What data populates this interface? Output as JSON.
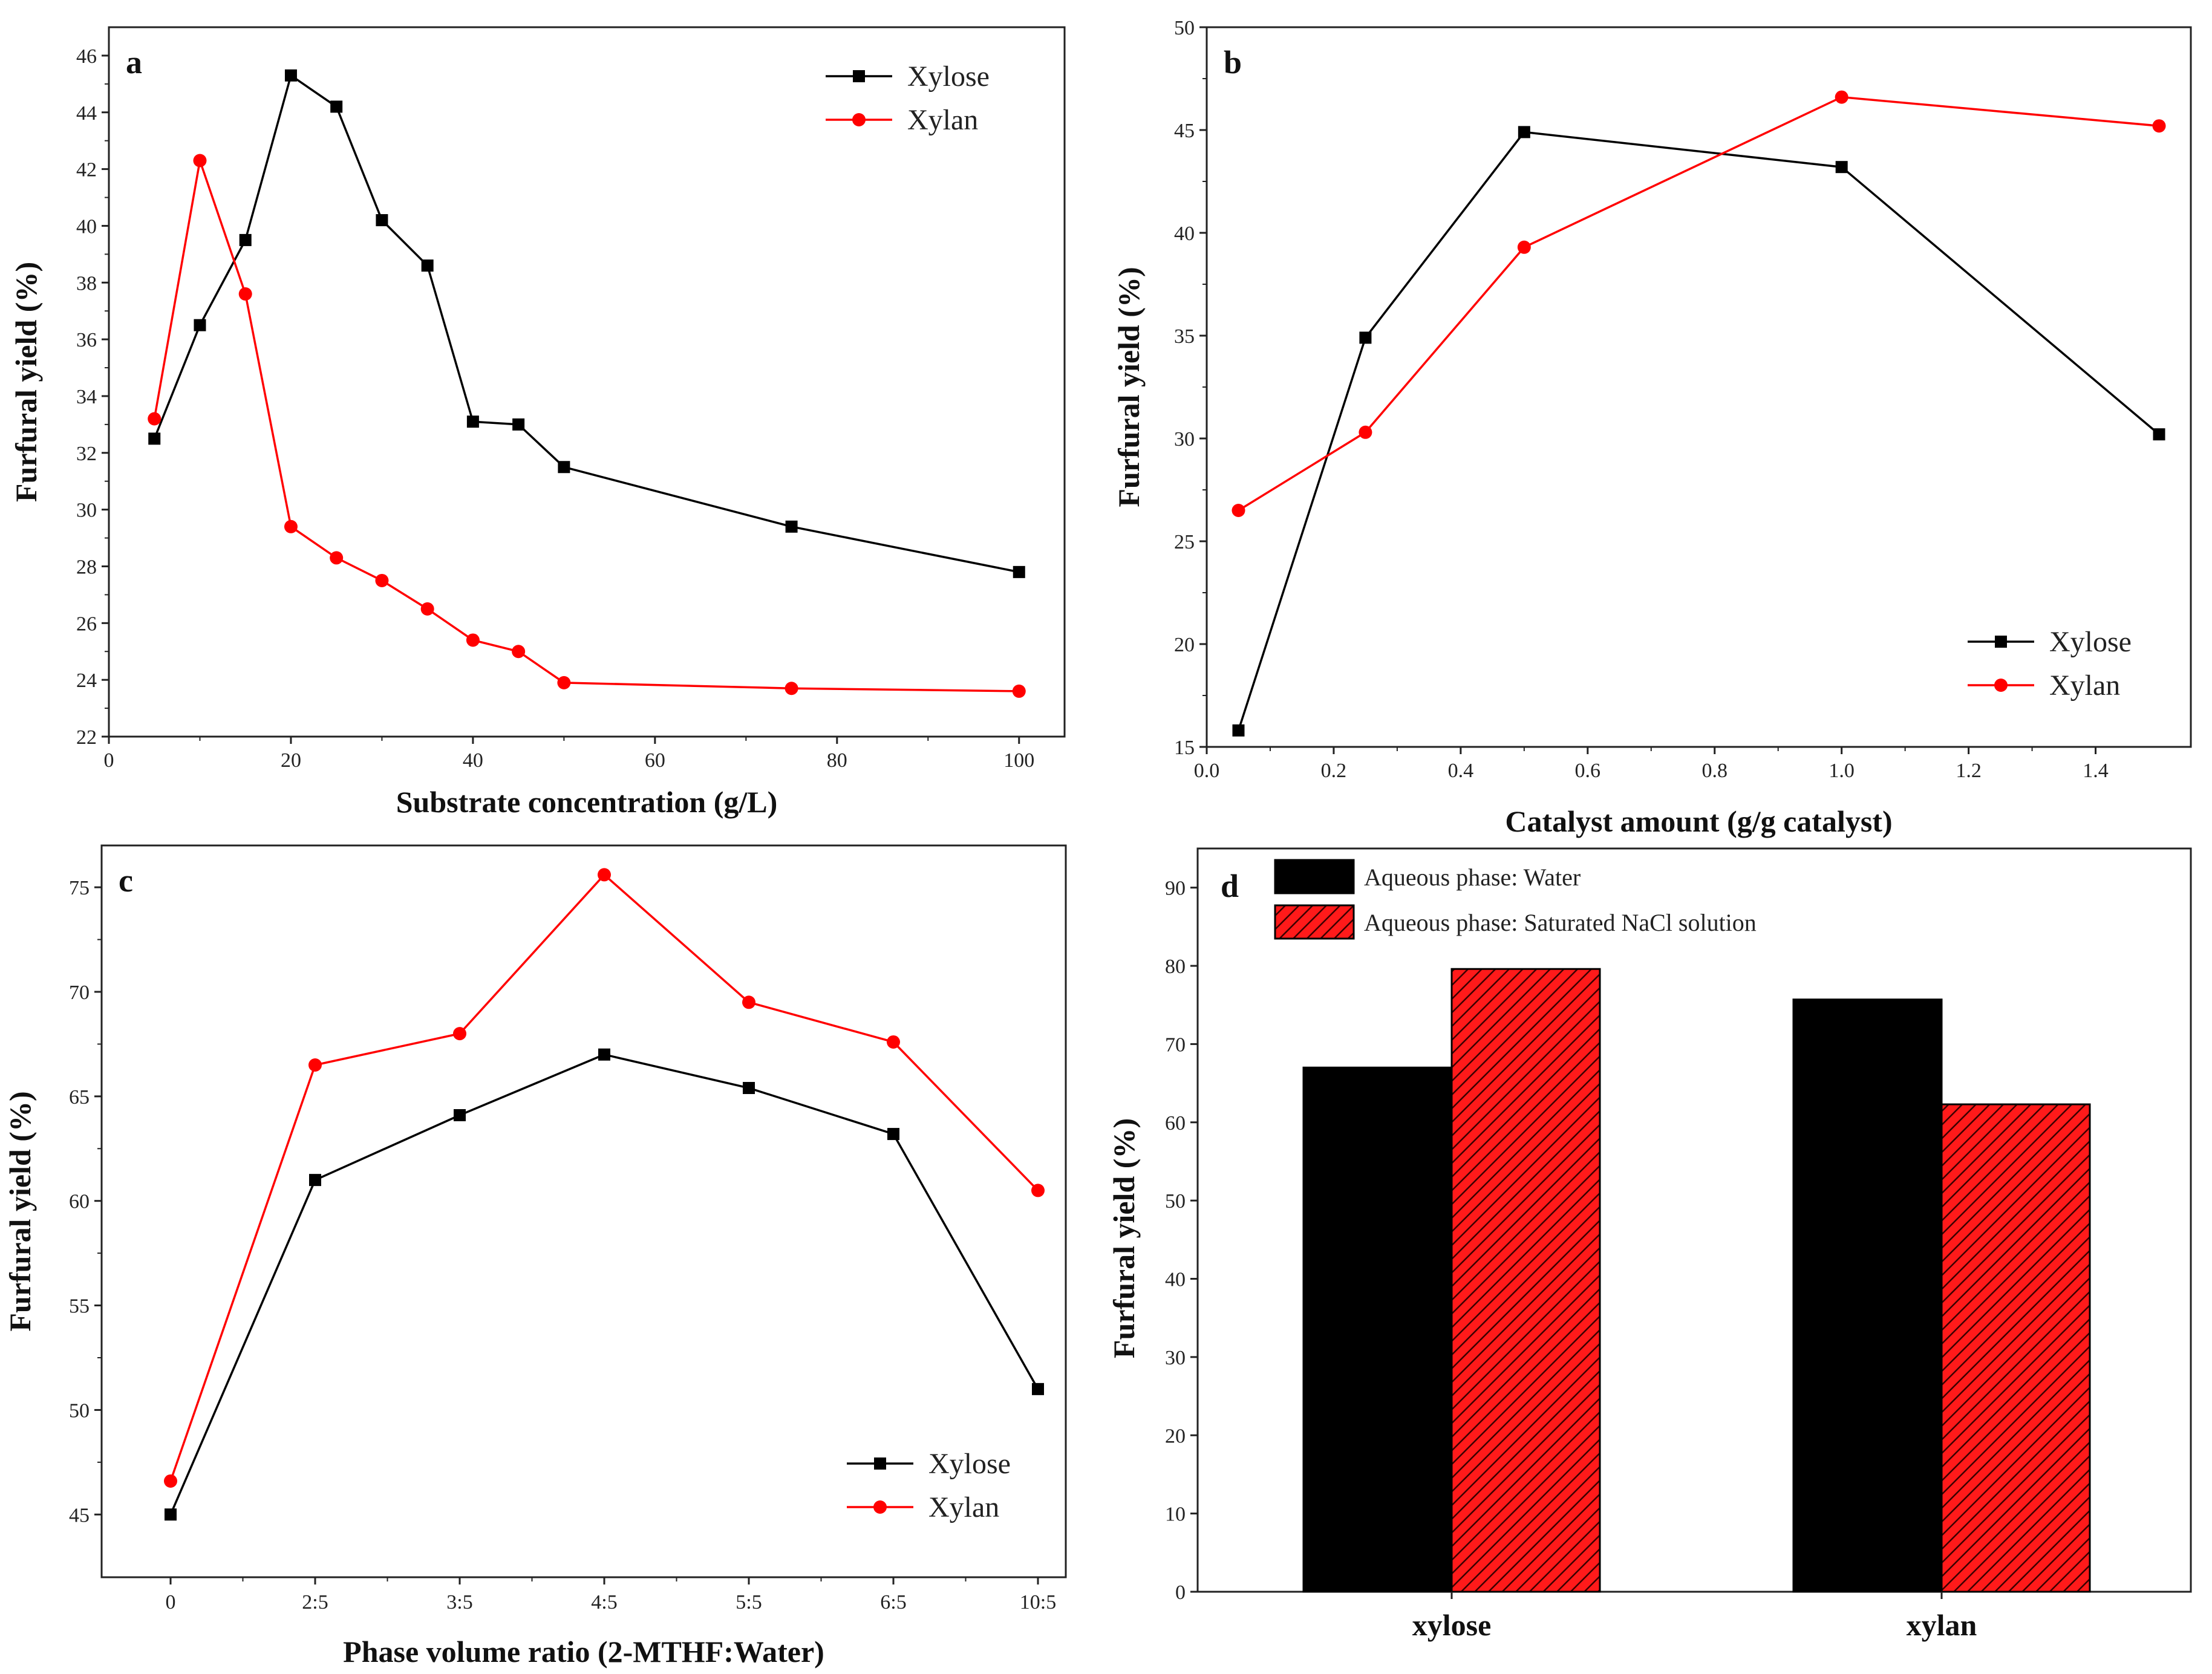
{
  "chart_data": [
    {
      "panel": "a",
      "type": "line",
      "xlabel": "Substrate concentration (g/L)",
      "ylabel": "Furfural yield (%)",
      "xlim": [
        0,
        105
      ],
      "ylim": [
        22,
        47
      ],
      "xticks": [
        0,
        20,
        40,
        60,
        80,
        100
      ],
      "yticks": [
        22,
        24,
        26,
        28,
        30,
        32,
        34,
        36,
        38,
        40,
        42,
        44,
        46
      ],
      "legend": "top-right",
      "series": [
        {
          "name": "Xylose",
          "color": "#000000",
          "marker": "square",
          "x": [
            5,
            10,
            15,
            20,
            25,
            30,
            35,
            40,
            45,
            50,
            75,
            100
          ],
          "y": [
            32.5,
            36.5,
            39.5,
            45.3,
            44.2,
            40.2,
            38.6,
            33.1,
            33.0,
            31.5,
            29.4,
            27.8
          ]
        },
        {
          "name": "Xylan",
          "color": "#ff0000",
          "marker": "circle",
          "x": [
            5,
            10,
            15,
            20,
            25,
            30,
            35,
            40,
            45,
            50,
            75,
            100
          ],
          "y": [
            33.2,
            42.3,
            37.6,
            29.4,
            28.3,
            27.5,
            26.5,
            25.4,
            25.0,
            23.9,
            23.7,
            23.6
          ]
        }
      ]
    },
    {
      "panel": "b",
      "type": "line",
      "xlabel": "Catalyst amount (g/g catalyst)",
      "ylabel": "Furfural yield (%)",
      "xlim": [
        0.0,
        1.55
      ],
      "ylim": [
        15,
        50
      ],
      "xticks": [
        "0.0",
        "0.2",
        "0.4",
        "0.6",
        "0.8",
        "1.0",
        "1.2",
        "1.4"
      ],
      "yticks": [
        15,
        20,
        25,
        30,
        35,
        40,
        45,
        50
      ],
      "legend": "bottom-right",
      "series": [
        {
          "name": "Xylose",
          "color": "#000000",
          "marker": "square",
          "x": [
            0.05,
            0.25,
            0.5,
            1.0,
            1.5
          ],
          "y": [
            15.8,
            34.9,
            44.9,
            43.2,
            30.2
          ]
        },
        {
          "name": "Xylan",
          "color": "#ff0000",
          "marker": "circle",
          "x": [
            0.05,
            0.25,
            0.5,
            1.0,
            1.5
          ],
          "y": [
            26.5,
            30.3,
            39.3,
            46.6,
            45.2
          ]
        }
      ]
    },
    {
      "panel": "c",
      "type": "line",
      "xlabel": "Phase volume ratio (2-MTHF:Water)",
      "ylabel": "Furfural yield (%)",
      "categories": [
        "0",
        "2:5",
        "3:5",
        "4:5",
        "5:5",
        "6:5",
        "10:5"
      ],
      "ylim": [
        42,
        77
      ],
      "yticks": [
        45,
        50,
        55,
        60,
        65,
        70,
        75
      ],
      "legend": "bottom-right",
      "series": [
        {
          "name": "Xylose",
          "color": "#000000",
          "marker": "square",
          "values": [
            45.0,
            61.0,
            64.1,
            67.0,
            65.4,
            63.2,
            51.0
          ]
        },
        {
          "name": "Xylan",
          "color": "#ff0000",
          "marker": "circle",
          "values": [
            46.6,
            66.5,
            68.0,
            75.6,
            69.5,
            67.6,
            60.5
          ]
        }
      ]
    },
    {
      "panel": "d",
      "type": "bar",
      "xlabel": "",
      "ylabel": "Furfural yield (%)",
      "categories": [
        "xylose",
        "xylan"
      ],
      "ylim": [
        0,
        95
      ],
      "yticks": [
        0,
        10,
        20,
        30,
        40,
        50,
        60,
        70,
        80,
        90
      ],
      "legend": "top-left",
      "series": [
        {
          "name": "Aqueous phase: Water",
          "color": "#000000",
          "pattern": "solid",
          "values": [
            67.0,
            75.7
          ]
        },
        {
          "name": "Aqueous phase: Saturated NaCl solution",
          "color": "#ff0000",
          "pattern": "hatched",
          "values": [
            79.6,
            62.3
          ]
        }
      ]
    }
  ]
}
